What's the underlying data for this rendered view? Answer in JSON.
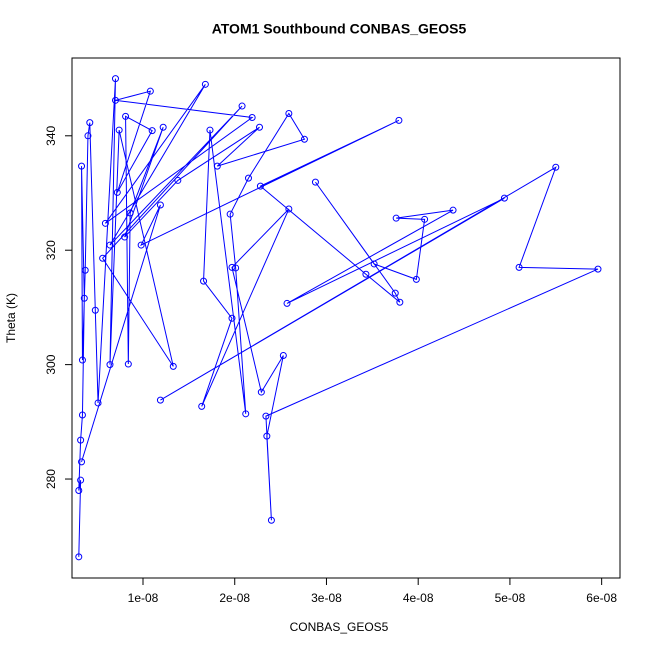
{
  "chart_data": {
    "type": "line",
    "title": "ATOM1 Southbound CONBAS_GEOS5",
    "x_label": "CONBAS_GEOS5",
    "y_label": "Theta (K)",
    "color": "#0000ff",
    "x": [
      3e-09,
      3.2e-09,
      3e-09,
      3.2e-09,
      3.4e-09,
      3.6e-09,
      3.3e-09,
      3.4e-09,
      3.7e-09,
      4e-09,
      4.2e-09,
      4.8e-09,
      5.1e-09,
      7e-09,
      6.4e-09,
      7.4e-09,
      1.33e-08,
      5.6e-09,
      2.08e-08,
      6.4e-09,
      1.68e-08,
      5.9e-09,
      2.19e-08,
      7e-09,
      1.08e-08,
      7.2e-09,
      1.1e-08,
      8.1e-09,
      8.4e-09,
      8.6e-09,
      1.22e-08,
      8e-09,
      1.38e-08,
      2.27e-08,
      1.81e-08,
      2.76e-08,
      2.59e-08,
      2.15e-08,
      1.95e-08,
      2.01e-08,
      2.12e-08,
      1.73e-08,
      1.66e-08,
      1.97e-08,
      1.64e-08,
      2.59e-08,
      1.97e-08,
      2.29e-08,
      2.53e-08,
      2.35e-08,
      2.4e-08,
      2.34e-08,
      5.96e-08,
      5.1e-08,
      5.5e-08,
      1.19e-08,
      4.94e-08,
      2.57e-08,
      4.38e-08,
      3.76e-08,
      4.07e-08,
      3.98e-08,
      3.52e-08,
      2.88e-08,
      3.75e-08,
      3.8e-08,
      3.43e-08,
      2.28e-08,
      3.79e-08,
      9.8e-09,
      1.19e-08,
      3.3e-09
    ],
    "values": [
      266.4,
      279.8,
      278,
      286.8,
      291.2,
      311.6,
      334.7,
      300.8,
      316.5,
      340,
      342.3,
      309.5,
      293.3,
      350,
      300,
      341,
      299.7,
      318.6,
      345.2,
      320.9,
      349,
      324.7,
      343.2,
      346.2,
      347.8,
      330.1,
      340.9,
      343.4,
      300.1,
      326.5,
      341.5,
      322.3,
      332.2,
      341.5,
      334.7,
      339.4,
      343.9,
      332.6,
      326.3,
      316.9,
      291.4,
      341,
      314.6,
      308.1,
      292.7,
      327.2,
      317,
      295.2,
      301.6,
      287.5,
      272.8,
      291,
      316.7,
      317,
      334.5,
      293.8,
      329.1,
      310.7,
      327,
      325.6,
      325.4,
      314.9,
      317.6,
      331.9,
      312.5,
      310.9,
      315.8,
      331.2,
      342.7,
      320.9,
      327.9,
      283
    ],
    "xlim": [
      2.26e-09,
      6.2e-08
    ],
    "xticks": [
      {
        "value": 1e-08,
        "label": "1e-08"
      },
      {
        "value": 2e-08,
        "label": "2e-08"
      },
      {
        "value": 3e-08,
        "label": "3e-08"
      },
      {
        "value": 4e-08,
        "label": "4e-08"
      },
      {
        "value": 5e-08,
        "label": "5e-08"
      },
      {
        "value": 6e-08,
        "label": "6e-08"
      }
    ],
    "ylim": [
      262.7,
      353.6
    ],
    "yticks": [
      280,
      300,
      320,
      340
    ],
    "markers": true
  }
}
